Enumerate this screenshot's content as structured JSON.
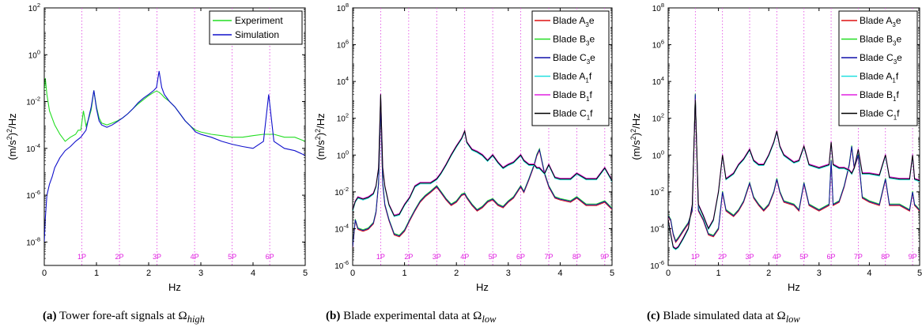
{
  "chart_data": [
    {
      "type": "line",
      "panel": "a",
      "xlabel": "Hz",
      "ylabel_parts": [
        "(m/s",
        "2",
        ")",
        "2",
        "/Hz"
      ],
      "xlim": [
        0,
        5
      ],
      "ylim": [
        1e-09,
        100
      ],
      "yscale": "log",
      "x_ticks": [
        0,
        1,
        2,
        3,
        4,
        5
      ],
      "y_ticks": [
        {
          "base": "10",
          "exp": "-8",
          "v": 1e-08
        },
        {
          "base": "10",
          "exp": "-6",
          "v": 1e-06
        },
        {
          "base": "10",
          "exp": "-4",
          "v": 0.0001
        },
        {
          "base": "10",
          "exp": "-2",
          "v": 0.01
        },
        {
          "base": "10",
          "exp": "0",
          "v": 1
        },
        {
          "base": "10",
          "exp": "2",
          "v": 100
        }
      ],
      "harmonics": [
        {
          "label": "1P",
          "x": 0.72
        },
        {
          "label": "2P",
          "x": 1.44
        },
        {
          "label": "3P",
          "x": 2.16
        },
        {
          "label": "4P",
          "x": 2.88
        },
        {
          "label": "5P",
          "x": 3.6
        },
        {
          "label": "6P",
          "x": 4.32
        }
      ],
      "legend_position": "top-right",
      "series": [
        {
          "name": "Experiment",
          "color": "#22dd22",
          "x": [
            0,
            0.02,
            0.05,
            0.1,
            0.15,
            0.2,
            0.3,
            0.4,
            0.5,
            0.6,
            0.65,
            0.7,
            0.75,
            0.8,
            0.85,
            0.9,
            0.95,
            1.0,
            1.05,
            1.1,
            1.2,
            1.3,
            1.4,
            1.5,
            1.6,
            1.7,
            1.8,
            1.9,
            2.0,
            2.1,
            2.15,
            2.2,
            2.25,
            2.3,
            2.4,
            2.5,
            2.6,
            2.7,
            2.8,
            2.9,
            3.0,
            3.2,
            3.4,
            3.6,
            3.8,
            4.0,
            4.2,
            4.3,
            4.4,
            4.6,
            4.8,
            5.0
          ],
          "y": [
            0.03,
            0.1,
            0.02,
            0.004,
            0.002,
            0.001,
            0.0004,
            0.0002,
            0.0003,
            0.0004,
            0.0006,
            0.0006,
            0.004,
            0.0009,
            0.0018,
            0.0045,
            0.03,
            0.006,
            0.002,
            0.0012,
            0.001,
            0.0012,
            0.0015,
            0.002,
            0.003,
            0.005,
            0.008,
            0.012,
            0.018,
            0.025,
            0.028,
            0.025,
            0.02,
            0.015,
            0.01,
            0.006,
            0.003,
            0.0015,
            0.0009,
            0.0006,
            0.0005,
            0.0004,
            0.00035,
            0.0003,
            0.0003,
            0.00035,
            0.0004,
            0.0004,
            0.0004,
            0.0003,
            0.0003,
            0.0002
          ]
        },
        {
          "name": "Simulation",
          "color": "#1010cc",
          "x": [
            0,
            0.02,
            0.05,
            0.1,
            0.15,
            0.2,
            0.3,
            0.4,
            0.5,
            0.6,
            0.7,
            0.8,
            0.85,
            0.9,
            0.95,
            1.0,
            1.05,
            1.1,
            1.2,
            1.3,
            1.4,
            1.5,
            1.6,
            1.7,
            1.8,
            1.9,
            2.0,
            2.1,
            2.15,
            2.2,
            2.25,
            2.3,
            2.4,
            2.5,
            2.6,
            2.7,
            2.8,
            2.9,
            3.0,
            3.2,
            3.4,
            3.6,
            3.8,
            4.0,
            4.2,
            4.25,
            4.3,
            4.35,
            4.4,
            4.6,
            4.8,
            5.0
          ],
          "y": [
            1e-08,
            1e-07,
            1e-06,
            3e-06,
            6e-06,
            1.5e-05,
            4e-05,
            8e-05,
            0.00012,
            0.0002,
            0.0003,
            0.0006,
            0.002,
            0.006,
            0.03,
            0.005,
            0.0015,
            0.001,
            0.0008,
            0.001,
            0.0014,
            0.002,
            0.003,
            0.005,
            0.009,
            0.014,
            0.02,
            0.03,
            0.04,
            0.2,
            0.04,
            0.02,
            0.01,
            0.006,
            0.003,
            0.0015,
            0.0009,
            0.0005,
            0.0004,
            0.0003,
            0.0002,
            0.00015,
            0.00012,
            0.0001,
            0.0002,
            0.002,
            0.02,
            0.002,
            0.0002,
            0.0001,
            8e-05,
            5e-05
          ]
        }
      ]
    },
    {
      "type": "line",
      "panel": "b",
      "xlabel": "Hz",
      "ylabel_parts": [
        "(m/s",
        "2",
        ")",
        "2",
        "/Hz"
      ],
      "xlim": [
        0,
        5
      ],
      "ylim": [
        1e-06,
        100000000.0
      ],
      "yscale": "log",
      "x_ticks": [
        0,
        1,
        2,
        3,
        4,
        5
      ],
      "y_ticks": [
        {
          "base": "10",
          "exp": "-6",
          "v": 1e-06
        },
        {
          "base": "10",
          "exp": "-4",
          "v": 0.0001
        },
        {
          "base": "10",
          "exp": "-2",
          "v": 0.01
        },
        {
          "base": "10",
          "exp": "0",
          "v": 1
        },
        {
          "base": "10",
          "exp": "2",
          "v": 100
        },
        {
          "base": "10",
          "exp": "4",
          "v": 10000.0
        },
        {
          "base": "10",
          "exp": "6",
          "v": 1000000.0
        },
        {
          "base": "10",
          "exp": "8",
          "v": 100000000.0
        }
      ],
      "harmonics": [
        {
          "label": "1P",
          "x": 0.54
        },
        {
          "label": "2P",
          "x": 1.08
        },
        {
          "label": "3P",
          "x": 1.62
        },
        {
          "label": "4P",
          "x": 2.16
        },
        {
          "label": "5P",
          "x": 2.7
        },
        {
          "label": "6P",
          "x": 3.24
        },
        {
          "label": "7P",
          "x": 3.78
        },
        {
          "label": "8P",
          "x": 4.32
        },
        {
          "label": "9P",
          "x": 4.86
        }
      ],
      "legend_position": "top-right",
      "legend": [
        {
          "prefix": "Blade A",
          "sub": "3",
          "suffix": "e",
          "color": "#dd1111"
        },
        {
          "prefix": "Blade B",
          "sub": "3",
          "suffix": "e",
          "color": "#22dd22"
        },
        {
          "prefix": "Blade C",
          "sub": "3",
          "suffix": "e",
          "color": "#1010aa"
        },
        {
          "prefix": "Blade A",
          "sub": "1",
          "suffix": "f",
          "color": "#22e0e0"
        },
        {
          "prefix": "Blade B",
          "sub": "1",
          "suffix": "f",
          "color": "#e020e0"
        },
        {
          "prefix": "Blade C",
          "sub": "1",
          "suffix": "f",
          "color": "#000000"
        }
      ],
      "groups": [
        {
          "name": "edge",
          "colors": [
            "#dd1111",
            "#22dd22",
            "#1010aa"
          ],
          "x": [
            0,
            0.05,
            0.1,
            0.2,
            0.3,
            0.4,
            0.45,
            0.5,
            0.54,
            0.58,
            0.62,
            0.7,
            0.8,
            0.9,
            1.0,
            1.1,
            1.2,
            1.3,
            1.4,
            1.5,
            1.62,
            1.7,
            1.8,
            1.9,
            2.0,
            2.1,
            2.16,
            2.2,
            2.3,
            2.4,
            2.5,
            2.6,
            2.7,
            2.8,
            2.9,
            3.0,
            3.1,
            3.24,
            3.3,
            3.4,
            3.5,
            3.55,
            3.6,
            3.7,
            3.78,
            3.9,
            4.0,
            4.2,
            4.32,
            4.5,
            4.7,
            4.86,
            5.0
          ],
          "y": [
            1e-05,
            0.0003,
            0.0001,
            8e-05,
            0.0001,
            0.0002,
            0.0008,
            0.03,
            500,
            0.03,
            0.002,
            0.0003,
            5e-05,
            4e-05,
            8e-05,
            0.0003,
            0.001,
            0.003,
            0.006,
            0.01,
            0.02,
            0.01,
            0.004,
            0.002,
            0.003,
            0.007,
            0.008,
            0.005,
            0.002,
            0.001,
            0.0015,
            0.003,
            0.004,
            0.002,
            0.0015,
            0.003,
            0.005,
            0.02,
            0.01,
            0.05,
            0.3,
            1,
            2,
            0.1,
            0.02,
            0.005,
            0.004,
            0.003,
            0.005,
            0.002,
            0.002,
            0.003,
            0.0012
          ]
        },
        {
          "name": "flap",
          "colors": [
            "#22e0e0",
            "#e020e0",
            "#000000"
          ],
          "x": [
            0,
            0.05,
            0.1,
            0.2,
            0.3,
            0.4,
            0.45,
            0.5,
            0.54,
            0.58,
            0.62,
            0.7,
            0.8,
            0.9,
            1.0,
            1.1,
            1.2,
            1.3,
            1.4,
            1.5,
            1.62,
            1.7,
            1.8,
            1.9,
            2.0,
            2.1,
            2.16,
            2.2,
            2.3,
            2.4,
            2.5,
            2.6,
            2.7,
            2.8,
            2.9,
            3.0,
            3.1,
            3.24,
            3.3,
            3.4,
            3.5,
            3.55,
            3.6,
            3.7,
            3.78,
            3.9,
            4.0,
            4.2,
            4.32,
            4.5,
            4.7,
            4.86,
            5.0
          ],
          "y": [
            0.001,
            0.003,
            0.005,
            0.004,
            0.005,
            0.008,
            0.02,
            0.2,
            2000,
            0.2,
            0.02,
            0.002,
            0.0005,
            0.0006,
            0.002,
            0.005,
            0.02,
            0.03,
            0.03,
            0.03,
            0.05,
            0.1,
            0.3,
            1,
            3,
            8,
            20,
            5,
            2,
            1.5,
            1,
            0.5,
            1,
            0.4,
            0.2,
            0.3,
            0.4,
            1,
            0.5,
            0.3,
            0.3,
            0.2,
            0.2,
            0.1,
            0.3,
            0.06,
            0.05,
            0.05,
            0.1,
            0.05,
            0.05,
            0.2,
            0.04
          ]
        }
      ]
    },
    {
      "type": "line",
      "panel": "c",
      "xlabel": "Hz",
      "ylabel_parts": [
        "(m/s",
        "2",
        ")",
        "2",
        "/Hz"
      ],
      "xlim": [
        0,
        5
      ],
      "ylim": [
        1e-06,
        100000000.0
      ],
      "yscale": "log",
      "x_ticks": [
        0,
        1,
        2,
        3,
        4,
        5
      ],
      "y_ticks": [
        {
          "base": "10",
          "exp": "-6",
          "v": 1e-06
        },
        {
          "base": "10",
          "exp": "-4",
          "v": 0.0001
        },
        {
          "base": "10",
          "exp": "-2",
          "v": 0.01
        },
        {
          "base": "10",
          "exp": "0",
          "v": 1
        },
        {
          "base": "10",
          "exp": "2",
          "v": 100
        },
        {
          "base": "10",
          "exp": "4",
          "v": 10000.0
        },
        {
          "base": "10",
          "exp": "6",
          "v": 1000000.0
        },
        {
          "base": "10",
          "exp": "8",
          "v": 100000000.0
        }
      ],
      "harmonics": [
        {
          "label": "1P",
          "x": 0.54
        },
        {
          "label": "2P",
          "x": 1.08
        },
        {
          "label": "3P",
          "x": 1.62
        },
        {
          "label": "4P",
          "x": 2.16
        },
        {
          "label": "5P",
          "x": 2.7
        },
        {
          "label": "6P",
          "x": 3.24
        },
        {
          "label": "7P",
          "x": 3.78
        },
        {
          "label": "8P",
          "x": 4.32
        },
        {
          "label": "9P",
          "x": 4.86
        }
      ],
      "legend_position": "top-right",
      "legend": [
        {
          "prefix": "Blade A",
          "sub": "3",
          "suffix": "e",
          "color": "#dd1111"
        },
        {
          "prefix": "Blade B",
          "sub": "3",
          "suffix": "e",
          "color": "#22dd22"
        },
        {
          "prefix": "Blade C",
          "sub": "3",
          "suffix": "e",
          "color": "#1010aa"
        },
        {
          "prefix": "Blade A",
          "sub": "1",
          "suffix": "f",
          "color": "#22e0e0"
        },
        {
          "prefix": "Blade B",
          "sub": "1",
          "suffix": "f",
          "color": "#e020e0"
        },
        {
          "prefix": "Blade C",
          "sub": "1",
          "suffix": "f",
          "color": "#000000"
        }
      ],
      "groups": [
        {
          "name": "edge",
          "colors": [
            "#dd1111",
            "#22dd22",
            "#1010aa"
          ],
          "x": [
            0,
            0.05,
            0.1,
            0.15,
            0.2,
            0.3,
            0.4,
            0.48,
            0.54,
            0.6,
            0.7,
            0.8,
            0.9,
            1.0,
            1.08,
            1.15,
            1.3,
            1.4,
            1.5,
            1.62,
            1.7,
            1.8,
            1.9,
            2.0,
            2.1,
            2.16,
            2.22,
            2.3,
            2.5,
            2.6,
            2.7,
            2.8,
            3.0,
            3.2,
            3.24,
            3.28,
            3.4,
            3.5,
            3.6,
            3.65,
            3.7,
            3.78,
            3.86,
            4.0,
            4.2,
            4.32,
            4.4,
            4.6,
            4.8,
            4.86,
            4.9,
            5.0
          ],
          "y": [
            0.0005,
            0.0003,
            5e-05,
            2e-05,
            3e-05,
            8e-05,
            0.0002,
            0.001,
            2000,
            0.001,
            0.0003,
            5e-05,
            4e-05,
            0.0001,
            0.01,
            0.001,
            0.0005,
            0.001,
            0.003,
            0.03,
            0.005,
            0.002,
            0.001,
            0.002,
            0.01,
            0.05,
            0.01,
            0.003,
            0.002,
            0.001,
            0.03,
            0.002,
            0.001,
            0.002,
            0.5,
            0.002,
            0.003,
            0.02,
            0.3,
            3,
            0.2,
            1,
            0.005,
            0.003,
            0.002,
            0.05,
            0.002,
            0.002,
            0.001,
            0.01,
            0.002,
            0.001
          ]
        },
        {
          "name": "flap",
          "colors": [
            "#22e0e0",
            "#e020e0",
            "#000000"
          ],
          "x": [
            0,
            0.05,
            0.1,
            0.15,
            0.2,
            0.3,
            0.4,
            0.48,
            0.54,
            0.6,
            0.7,
            0.8,
            0.9,
            1.0,
            1.08,
            1.15,
            1.3,
            1.4,
            1.5,
            1.62,
            1.7,
            1.8,
            1.9,
            2.0,
            2.1,
            2.16,
            2.22,
            2.3,
            2.5,
            2.6,
            2.7,
            2.8,
            3.0,
            3.2,
            3.24,
            3.28,
            3.4,
            3.5,
            3.6,
            3.65,
            3.7,
            3.78,
            3.86,
            4.0,
            4.2,
            4.32,
            4.4,
            4.6,
            4.8,
            4.86,
            4.9,
            5.0
          ],
          "y": [
            0.0003,
            5e-05,
            1e-05,
            8e-06,
            1e-05,
            3e-05,
            0.0001,
            0.002,
            1000,
            0.002,
            0.0005,
            0.0001,
            0.0003,
            0.01,
            1,
            0.05,
            0.1,
            0.3,
            0.6,
            2,
            0.5,
            0.3,
            0.3,
            1,
            5,
            20,
            3,
            1,
            0.4,
            0.5,
            3,
            0.3,
            0.2,
            0.3,
            5,
            0.3,
            0.2,
            0.2,
            0.15,
            0.1,
            0.2,
            2,
            0.1,
            0.1,
            0.08,
            1,
            0.06,
            0.05,
            0.05,
            1,
            0.05,
            0.04
          ]
        }
      ]
    }
  ],
  "captions": [
    {
      "label": "(a)",
      "text": "Tower fore-aft signals at Ω",
      "sub": "high"
    },
    {
      "label": "(b)",
      "text": "Blade experimental data at Ω",
      "sub": "low"
    },
    {
      "label": "(c)",
      "text": "Blade simulated data at Ω",
      "sub": "low"
    }
  ]
}
